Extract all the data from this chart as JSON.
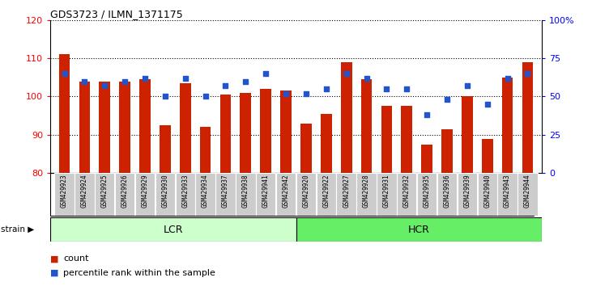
{
  "title": "GDS3723 / ILMN_1371175",
  "samples": [
    "GSM429923",
    "GSM429924",
    "GSM429925",
    "GSM429926",
    "GSM429929",
    "GSM429930",
    "GSM429933",
    "GSM429934",
    "GSM429937",
    "GSM429938",
    "GSM429941",
    "GSM429942",
    "GSM429920",
    "GSM429922",
    "GSM429927",
    "GSM429928",
    "GSM429931",
    "GSM429932",
    "GSM429935",
    "GSM429936",
    "GSM429939",
    "GSM429940",
    "GSM429943",
    "GSM429944"
  ],
  "counts": [
    111.0,
    104.0,
    104.0,
    104.0,
    104.5,
    92.5,
    103.5,
    92.0,
    100.5,
    101.0,
    102.0,
    101.5,
    93.0,
    95.5,
    109.0,
    104.5,
    97.5,
    97.5,
    87.5,
    91.5,
    100.0,
    89.0,
    105.0,
    109.0
  ],
  "percentiles": [
    65,
    60,
    57,
    60,
    62,
    50,
    62,
    50,
    57,
    60,
    65,
    52,
    52,
    55,
    65,
    62,
    55,
    55,
    38,
    48,
    57,
    45,
    62,
    65
  ],
  "lcr_count": 12,
  "hcr_count": 12,
  "ylim_left": [
    80,
    120
  ],
  "ylim_right": [
    0,
    100
  ],
  "yticks_left": [
    80,
    90,
    100,
    110,
    120
  ],
  "yticks_right": [
    0,
    25,
    50,
    75,
    100
  ],
  "bar_color": "#cc2200",
  "dot_color": "#2255cc",
  "lcr_color": "#ccffcc",
  "hcr_color": "#66ee66",
  "bg_color": "#ffffff",
  "tick_label_bg": "#cccccc"
}
